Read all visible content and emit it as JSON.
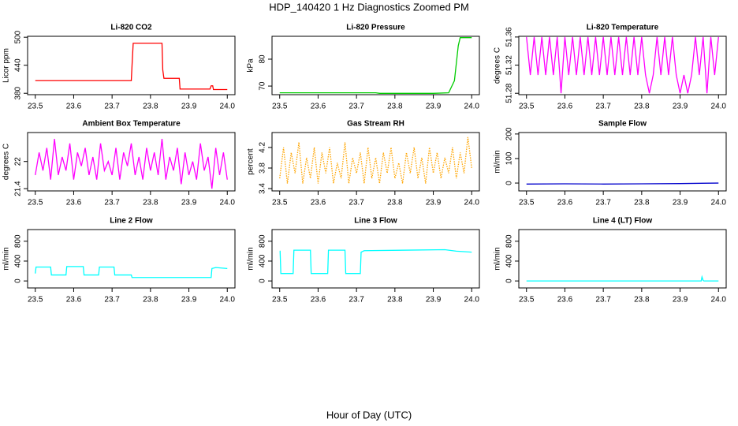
{
  "title": "HDP_140420  1 Hz Diagnostics Zoomed PM",
  "xlabel": "Hour of Day (UTC)",
  "chart_data": [
    {
      "type": "line",
      "title": "Li-820 CO2",
      "ylabel": "Licor ppm",
      "color": "#ff0000",
      "x": [
        23.5,
        23.75,
        23.752,
        23.755,
        23.83,
        23.832,
        23.835,
        23.875,
        23.877,
        23.955,
        23.958,
        23.962,
        23.964,
        24.0
      ],
      "values": [
        407,
        407,
        440,
        487,
        487,
        430,
        412,
        412,
        389,
        389,
        396,
        396,
        388,
        388
      ],
      "xlim": [
        23.48,
        24.02
      ],
      "xticks": [
        23.5,
        23.6,
        23.7,
        23.8,
        23.9,
        {
          "value": 24,
          "label": "24.0"
        }
      ],
      "ylim": [
        377,
        502
      ],
      "yticks": [
        380,
        440,
        500
      ]
    },
    {
      "type": "line",
      "title": "Li-820 Pressure",
      "ylabel": "kPa",
      "color": "#00cc00",
      "x": [
        23.5,
        23.75,
        23.76,
        23.9,
        23.94,
        23.955,
        23.965,
        23.97,
        24.0
      ],
      "values": [
        67.5,
        67.5,
        67.3,
        67.3,
        67.5,
        72,
        85,
        88,
        88
      ],
      "xlim": [
        23.48,
        24.02
      ],
      "xticks": [
        23.5,
        23.6,
        23.7,
        23.8,
        23.9,
        {
          "value": 24,
          "label": "24.0"
        }
      ],
      "ylim": [
        66.8,
        88.5
      ],
      "yticks": [
        70,
        80
      ]
    },
    {
      "type": "line",
      "title": "Li-820 Temperature",
      "ylabel": "degrees C",
      "color": "#ff00ff",
      "x": [
        23.5,
        23.51,
        23.52,
        23.53,
        23.54,
        23.55,
        23.56,
        23.57,
        23.58,
        23.59,
        23.6,
        23.61,
        23.62,
        23.63,
        23.64,
        23.65,
        23.66,
        23.67,
        23.68,
        23.69,
        23.7,
        23.71,
        23.72,
        23.73,
        23.74,
        23.75,
        23.76,
        23.77,
        23.78,
        23.79,
        23.8,
        23.81,
        23.82,
        23.83,
        23.84,
        23.85,
        23.86,
        23.87,
        23.88,
        23.89,
        23.9,
        23.91,
        23.92,
        23.93,
        23.94,
        23.95,
        23.96,
        23.97,
        23.98,
        23.99,
        24.0
      ],
      "values": [
        51.36,
        51.306,
        51.36,
        51.306,
        51.36,
        51.306,
        51.36,
        51.306,
        51.36,
        51.28,
        51.36,
        51.306,
        51.36,
        51.306,
        51.36,
        51.306,
        51.36,
        51.306,
        51.36,
        51.306,
        51.36,
        51.306,
        51.36,
        51.306,
        51.36,
        51.306,
        51.36,
        51.306,
        51.36,
        51.306,
        51.36,
        51.306,
        51.28,
        51.306,
        51.36,
        51.306,
        51.36,
        51.306,
        51.36,
        51.306,
        51.28,
        51.306,
        51.28,
        51.306,
        51.36,
        51.306,
        51.36,
        51.28,
        51.36,
        51.306,
        51.36
      ],
      "xlim": [
        23.48,
        24.02
      ],
      "xticks": [
        23.5,
        23.6,
        23.7,
        23.8,
        23.9,
        {
          "value": 24,
          "label": "24.0"
        }
      ],
      "ylim": [
        51.278,
        51.361
      ],
      "yticks": [
        51.28,
        51.32,
        51.36
      ]
    },
    {
      "type": "line",
      "title": "Ambient Box Temperature",
      "ylabel": "degrees C",
      "color": "#ff00ff",
      "x": [
        23.5,
        23.51,
        23.52,
        23.53,
        23.54,
        23.55,
        23.56,
        23.57,
        23.58,
        23.59,
        23.6,
        23.61,
        23.62,
        23.63,
        23.64,
        23.65,
        23.66,
        23.67,
        23.68,
        23.69,
        23.7,
        23.71,
        23.72,
        23.73,
        23.74,
        23.75,
        23.76,
        23.77,
        23.78,
        23.79,
        23.8,
        23.81,
        23.82,
        23.83,
        23.84,
        23.85,
        23.86,
        23.87,
        23.88,
        23.89,
        23.9,
        23.91,
        23.92,
        23.93,
        23.94,
        23.95,
        23.96,
        23.97,
        23.98,
        23.99,
        24.0
      ],
      "values": [
        21.7,
        22.2,
        21.8,
        22.3,
        21.6,
        22.5,
        21.7,
        22.1,
        21.8,
        22.4,
        21.6,
        22.2,
        21.9,
        22.3,
        21.7,
        22.1,
        21.6,
        22.4,
        21.8,
        22.0,
        21.7,
        22.3,
        21.6,
        22.2,
        21.9,
        22.4,
        21.7,
        22.1,
        21.6,
        22.3,
        21.8,
        22.2,
        21.7,
        22.5,
        21.6,
        22.1,
        21.8,
        22.3,
        21.5,
        22.2,
        21.7,
        22.0,
        21.6,
        22.4,
        21.8,
        22.1,
        21.4,
        22.3,
        21.7,
        22.2,
        21.6
      ],
      "xlim": [
        23.48,
        24.02
      ],
      "xticks": [
        23.5,
        23.6,
        23.7,
        23.8,
        23.9,
        {
          "value": 24,
          "label": "24.0"
        }
      ],
      "ylim": [
        21.35,
        22.64
      ],
      "yticks": [
        21.4,
        22.0
      ]
    },
    {
      "type": "line",
      "title": "Gas Stream RH",
      "ylabel": "percent",
      "color": "#ffa500",
      "line_style": "dotted",
      "x": [
        23.5,
        23.51,
        23.52,
        23.53,
        23.54,
        23.55,
        23.56,
        23.57,
        23.58,
        23.59,
        23.6,
        23.61,
        23.62,
        23.63,
        23.64,
        23.65,
        23.66,
        23.67,
        23.68,
        23.69,
        23.7,
        23.71,
        23.72,
        23.73,
        23.74,
        23.75,
        23.76,
        23.77,
        23.78,
        23.79,
        23.8,
        23.81,
        23.82,
        23.83,
        23.84,
        23.85,
        23.86,
        23.87,
        23.88,
        23.89,
        23.9,
        23.91,
        23.92,
        23.93,
        23.94,
        23.95,
        23.96,
        23.97,
        23.98,
        23.99,
        24.0
      ],
      "values": [
        3.6,
        4.2,
        3.5,
        4.1,
        3.7,
        4.3,
        3.5,
        4.0,
        3.6,
        4.2,
        3.5,
        4.1,
        3.7,
        4.2,
        3.5,
        3.9,
        3.6,
        4.3,
        3.5,
        4.0,
        3.7,
        4.1,
        3.5,
        4.2,
        3.6,
        4.0,
        3.5,
        4.1,
        3.7,
        4.2,
        3.6,
        3.9,
        3.5,
        4.1,
        3.7,
        4.2,
        3.6,
        4.0,
        3.5,
        4.2,
        3.7,
        4.1,
        3.6,
        4.0,
        3.7,
        4.2,
        3.6,
        4.1,
        3.7,
        4.4,
        3.8
      ],
      "xlim": [
        23.48,
        24.02
      ],
      "xticks": [
        23.5,
        23.6,
        23.7,
        23.8,
        23.9,
        {
          "value": 24,
          "label": "24.0"
        }
      ],
      "ylim": [
        3.355,
        4.49
      ],
      "yticks": [
        3.4,
        3.8,
        4.2
      ]
    },
    {
      "type": "line",
      "title": "Sample Flow",
      "ylabel": "ml/min",
      "color": "#0000cc",
      "x": [
        23.5,
        23.6,
        23.7,
        23.8,
        23.9,
        24.0
      ],
      "values": [
        -4,
        -3,
        -4,
        -3,
        -2,
        0
      ],
      "xlim": [
        23.48,
        24.02
      ],
      "xticks": [
        23.5,
        23.6,
        23.7,
        23.8,
        23.9,
        {
          "value": 24,
          "label": "24.0"
        }
      ],
      "ylim": [
        -32,
        206
      ],
      "yticks": [
        0,
        100,
        200
      ]
    },
    {
      "type": "line",
      "title": "Line 2 Flow",
      "ylabel": "ml/min",
      "color": "#00ffff",
      "x": [
        23.5,
        23.502,
        23.54,
        23.542,
        23.58,
        23.582,
        23.625,
        23.627,
        23.665,
        23.667,
        23.705,
        23.707,
        23.75,
        23.752,
        23.958,
        23.96,
        23.97,
        24.0
      ],
      "values": [
        150,
        280,
        280,
        120,
        120,
        290,
        290,
        120,
        120,
        280,
        280,
        120,
        120,
        70,
        70,
        250,
        270,
        250
      ],
      "xlim": [
        23.48,
        24.02
      ],
      "xticks": [
        23.5,
        23.6,
        23.7,
        23.8,
        23.9,
        {
          "value": 24,
          "label": "24.0"
        }
      ],
      "ylim": [
        -141,
        1035
      ],
      "yticks": [
        0,
        400,
        800
      ]
    },
    {
      "type": "line",
      "title": "Line 3 Flow",
      "ylabel": "ml/min",
      "color": "#00ffff",
      "x": [
        23.5,
        23.501,
        23.503,
        23.535,
        23.537,
        23.58,
        23.582,
        23.625,
        23.627,
        23.67,
        23.672,
        23.71,
        23.712,
        23.72,
        23.93,
        23.96,
        24.0
      ],
      "values": [
        600,
        600,
        150,
        150,
        620,
        620,
        150,
        150,
        620,
        620,
        150,
        150,
        580,
        610,
        630,
        600,
        580
      ],
      "xlim": [
        23.48,
        24.02
      ],
      "xticks": [
        23.5,
        23.6,
        23.7,
        23.8,
        23.9,
        {
          "value": 24,
          "label": "24.0"
        }
      ],
      "ylim": [
        -141,
        1035
      ],
      "yticks": [
        0,
        400,
        800
      ]
    },
    {
      "type": "line",
      "title": "Line 4 (LT) Flow",
      "ylabel": "ml/min",
      "color": "#00ffff",
      "x": [
        23.5,
        23.955,
        23.957,
        23.96,
        23.962,
        24.0
      ],
      "values": [
        0,
        0,
        80,
        10,
        0,
        0
      ],
      "xlim": [
        23.48,
        24.02
      ],
      "xticks": [
        23.5,
        23.6,
        23.7,
        23.8,
        23.9,
        {
          "value": 24,
          "label": "24.0"
        }
      ],
      "ylim": [
        -141,
        1035
      ],
      "yticks": [
        0,
        400,
        800
      ]
    }
  ]
}
